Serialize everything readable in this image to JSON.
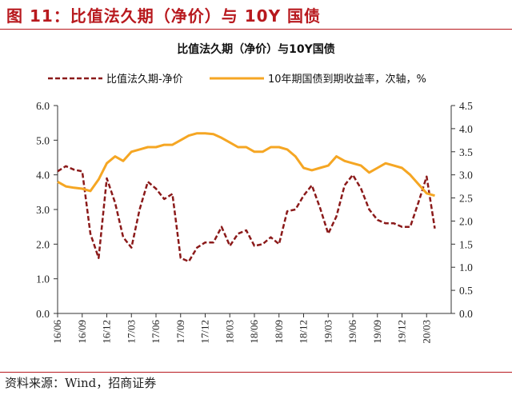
{
  "figure_title": "图 11：比值法久期（净价）与 10Y 国债",
  "source": "资料来源：Wind，招商证券",
  "chart_data": {
    "type": "line",
    "title": "比值法久期（净价）与10Y国债",
    "xlabel": "",
    "ylabel": "",
    "ylim": [
      0,
      6
    ],
    "y2lim": [
      0,
      4.5
    ],
    "yticks": [
      "0.0",
      "1.0",
      "2.0",
      "3.0",
      "4.0",
      "5.0",
      "6.0"
    ],
    "y2ticks": [
      "0.0",
      "0.5",
      "1.0",
      "1.5",
      "2.0",
      "2.5",
      "3.0",
      "3.5",
      "4.0",
      "4.5"
    ],
    "x_range": [
      "16/06",
      "20/06"
    ],
    "xticks": [
      "16/06",
      "16/09",
      "16/12",
      "17/03",
      "17/06",
      "17/09",
      "17/12",
      "18/03",
      "18/06",
      "18/09",
      "18/12",
      "19/03",
      "19/06",
      "19/09",
      "19/12",
      "20/03"
    ],
    "legend_position": "top",
    "grid": false,
    "series": [
      {
        "name": "比值法久期-净价",
        "axis": "left",
        "color": "#8b1a1a",
        "style": "dashed",
        "x": [
          "16/06",
          "16/07",
          "16/08",
          "16/09",
          "16/10",
          "16/11",
          "16/12",
          "17/01",
          "17/02",
          "17/03",
          "17/04",
          "17/05",
          "17/06",
          "17/07",
          "17/08",
          "17/09",
          "17/10",
          "17/11",
          "17/12",
          "18/01",
          "18/02",
          "18/03",
          "18/04",
          "18/05",
          "18/06",
          "18/07",
          "18/08",
          "18/09",
          "18/10",
          "18/11",
          "18/12",
          "19/01",
          "19/02",
          "19/03",
          "19/04",
          "19/05",
          "19/06",
          "19/07",
          "19/08",
          "19/09",
          "19/10",
          "19/11",
          "19/12",
          "20/01",
          "20/02",
          "20/03",
          "20/04"
        ],
        "values": [
          4.1,
          4.25,
          4.15,
          4.1,
          2.3,
          1.6,
          3.9,
          3.2,
          2.2,
          1.9,
          3.0,
          3.8,
          3.6,
          3.3,
          3.45,
          1.6,
          1.5,
          1.9,
          2.05,
          2.05,
          2.5,
          1.95,
          2.3,
          2.4,
          1.95,
          2.0,
          2.2,
          2.0,
          2.95,
          3.0,
          3.4,
          3.7,
          3.05,
          2.3,
          2.8,
          3.7,
          4.0,
          3.6,
          3.0,
          2.7,
          2.6,
          2.6,
          2.5,
          2.5,
          3.2,
          3.95,
          2.45
        ]
      },
      {
        "name": "10年期国债到期收益率，次轴，%",
        "axis": "right",
        "color": "#f5a623",
        "style": "solid",
        "x": [
          "16/06",
          "16/07",
          "16/08",
          "16/09",
          "16/10",
          "16/11",
          "16/12",
          "17/01",
          "17/02",
          "17/03",
          "17/04",
          "17/05",
          "17/06",
          "17/07",
          "17/08",
          "17/09",
          "17/10",
          "17/11",
          "17/12",
          "18/01",
          "18/02",
          "18/03",
          "18/04",
          "18/05",
          "18/06",
          "18/07",
          "18/08",
          "18/09",
          "18/10",
          "18/11",
          "18/12",
          "19/01",
          "19/02",
          "19/03",
          "19/04",
          "19/05",
          "19/06",
          "19/07",
          "19/08",
          "19/09",
          "19/10",
          "19/11",
          "19/12",
          "20/01",
          "20/02",
          "20/03",
          "20/04"
        ],
        "values": [
          2.85,
          2.75,
          2.72,
          2.7,
          2.65,
          2.9,
          3.25,
          3.4,
          3.3,
          3.5,
          3.55,
          3.6,
          3.6,
          3.65,
          3.65,
          3.75,
          3.85,
          3.9,
          3.9,
          3.88,
          3.8,
          3.7,
          3.6,
          3.6,
          3.5,
          3.5,
          3.6,
          3.6,
          3.55,
          3.4,
          3.15,
          3.1,
          3.15,
          3.2,
          3.4,
          3.3,
          3.25,
          3.2,
          3.05,
          3.15,
          3.25,
          3.2,
          3.15,
          3.0,
          2.8,
          2.6,
          2.55
        ]
      }
    ]
  }
}
